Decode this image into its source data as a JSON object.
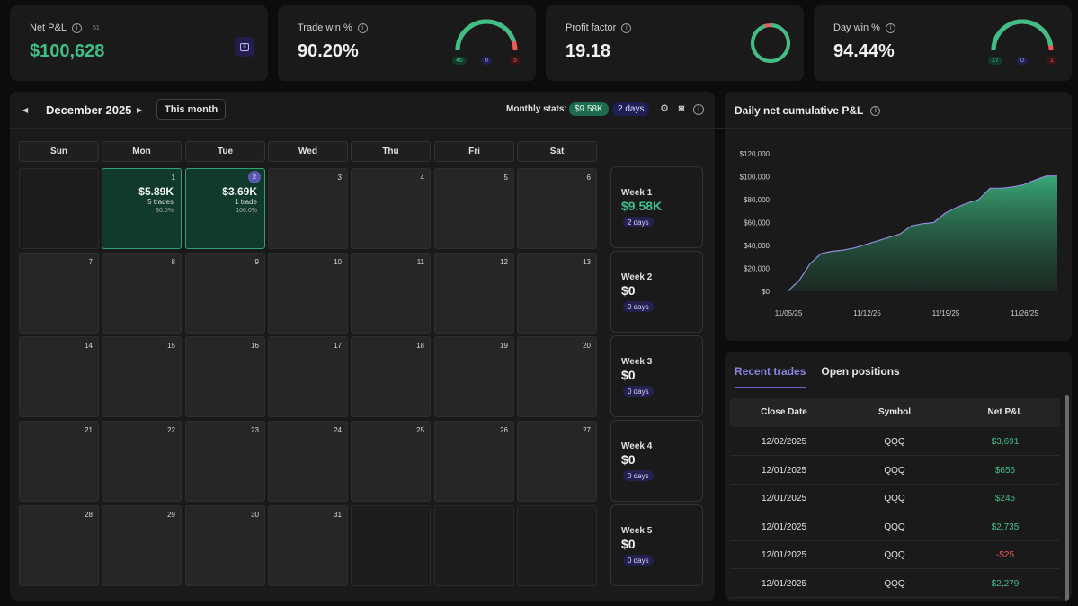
{
  "kpis": {
    "net_pnl": {
      "label": "Net P&L",
      "count": "51",
      "value": "$100,628"
    },
    "trade_win": {
      "label": "Trade win %",
      "value": "90.20%",
      "win": "46",
      "even": "0",
      "loss": "5",
      "win_fraction": 0.902
    },
    "profit_factor": {
      "label": "Profit factor",
      "value": "19.18",
      "ring_fraction": 0.95
    },
    "day_win": {
      "label": "Day win %",
      "value": "94.44%",
      "win": "17",
      "even": "0",
      "loss": "1",
      "win_fraction": 0.9444
    }
  },
  "calendar": {
    "month": "December 2025",
    "this_month": "This month",
    "monthly_stats_label": "Monthly stats:",
    "monthly_pnl": "$9.58K",
    "monthly_days": "2 days",
    "weekdays": [
      "Sun",
      "Mon",
      "Tue",
      "Wed",
      "Thu",
      "Fri",
      "Sat"
    ],
    "days": [
      {
        "num": "",
        "type": "empty"
      },
      {
        "num": "1",
        "type": "win",
        "pnl": "$5.89K",
        "trades": "5 trades",
        "pct": "80.0%"
      },
      {
        "num": "2",
        "type": "win",
        "today": true,
        "pnl": "$3.69K",
        "trades": "1 trade",
        "pct": "100.0%"
      },
      {
        "num": "3"
      },
      {
        "num": "4"
      },
      {
        "num": "5"
      },
      {
        "num": "6"
      },
      {
        "num": "7"
      },
      {
        "num": "8"
      },
      {
        "num": "9"
      },
      {
        "num": "10"
      },
      {
        "num": "11"
      },
      {
        "num": "12"
      },
      {
        "num": "13"
      },
      {
        "num": "14"
      },
      {
        "num": "15"
      },
      {
        "num": "16"
      },
      {
        "num": "17"
      },
      {
        "num": "18"
      },
      {
        "num": "19"
      },
      {
        "num": "20"
      },
      {
        "num": "21"
      },
      {
        "num": "22"
      },
      {
        "num": "23"
      },
      {
        "num": "24"
      },
      {
        "num": "25"
      },
      {
        "num": "26"
      },
      {
        "num": "27"
      },
      {
        "num": "28"
      },
      {
        "num": "29"
      },
      {
        "num": "30"
      },
      {
        "num": "31"
      },
      {
        "num": "",
        "type": "empty"
      },
      {
        "num": "",
        "type": "empty"
      },
      {
        "num": "",
        "type": "empty"
      }
    ],
    "weeks": [
      {
        "label": "Week 1",
        "value": "$9.58K",
        "days": "2 days",
        "positive": true
      },
      {
        "label": "Week 2",
        "value": "$0",
        "days": "0 days"
      },
      {
        "label": "Week 3",
        "value": "$0",
        "days": "0 days"
      },
      {
        "label": "Week 4",
        "value": "$0",
        "days": "0 days"
      },
      {
        "label": "Week 5",
        "value": "$0",
        "days": "0 days"
      }
    ]
  },
  "chart_data": {
    "type": "area",
    "title": "Daily net cumulative P&L",
    "x": [
      0,
      1,
      2,
      3,
      4,
      5,
      6,
      7,
      8,
      9,
      10,
      11,
      12,
      13,
      14,
      15,
      16,
      17,
      18,
      19,
      20,
      21,
      22,
      23,
      24
    ],
    "values": [
      0,
      9000,
      24000,
      33000,
      35000,
      36000,
      38000,
      41000,
      44000,
      47000,
      50000,
      57000,
      59000,
      60000,
      68000,
      73000,
      77000,
      80000,
      90000,
      90000,
      91000,
      93000,
      97000,
      100628,
      100628
    ],
    "x_tick_positions": [
      0,
      7,
      14,
      21
    ],
    "x_tick_labels": [
      "11/05/25",
      "11/12/25",
      "11/19/25",
      "11/26/25"
    ],
    "y_ticks": [
      0,
      20000,
      40000,
      60000,
      80000,
      100000,
      120000
    ],
    "y_tick_labels": [
      "$0",
      "$20,000",
      "$40,000",
      "$60,000",
      "$80,000",
      "$100,000",
      "$120,000"
    ],
    "ylim": [
      0,
      120000
    ],
    "xlim": [
      0,
      24
    ],
    "xlabel": "",
    "ylabel": ""
  },
  "trades": {
    "tabs": [
      "Recent trades",
      "Open positions"
    ],
    "columns": [
      "Close Date",
      "Symbol",
      "Net P&L"
    ],
    "rows": [
      {
        "date": "12/02/2025",
        "symbol": "QQQ",
        "pnl": "$3,691",
        "positive": true
      },
      {
        "date": "12/01/2025",
        "symbol": "QQQ",
        "pnl": "$656",
        "positive": true
      },
      {
        "date": "12/01/2025",
        "symbol": "QQQ",
        "pnl": "$245",
        "positive": true
      },
      {
        "date": "12/01/2025",
        "symbol": "QQQ",
        "pnl": "$2,735",
        "positive": true
      },
      {
        "date": "12/01/2025",
        "symbol": "QQQ",
        "pnl": "-$25",
        "positive": false
      },
      {
        "date": "12/01/2025",
        "symbol": "QQQ",
        "pnl": "$2,279",
        "positive": true
      }
    ]
  },
  "colors": {
    "green": "#3fbf86",
    "red": "#ef5b5b",
    "purple": "#6a66c8",
    "card": "#1a1a1a"
  }
}
